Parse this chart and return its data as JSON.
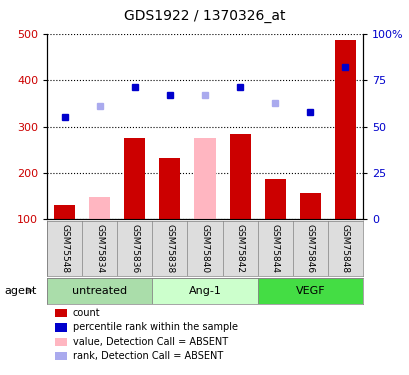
{
  "title": "GDS1922 / 1370326_at",
  "samples": [
    "GSM75548",
    "GSM75834",
    "GSM75836",
    "GSM75838",
    "GSM75840",
    "GSM75842",
    "GSM75844",
    "GSM75846",
    "GSM75848"
  ],
  "bar_values": [
    130,
    null,
    275,
    232,
    null,
    284,
    188,
    157,
    487
  ],
  "bar_absent_values": [
    null,
    148,
    null,
    null,
    275,
    null,
    null,
    null,
    null
  ],
  "dot_present": [
    320,
    null,
    385,
    368,
    null,
    386,
    null,
    332,
    428
  ],
  "dot_absent": [
    null,
    345,
    null,
    null,
    368,
    null,
    350,
    null,
    null
  ],
  "bar_color": "#CC0000",
  "bar_absent_color": "#FFB6C1",
  "dot_present_color": "#0000CC",
  "dot_absent_color": "#AAAAEE",
  "ylim_left": [
    100,
    500
  ],
  "ylim_right": [
    0,
    100
  ],
  "yticks_left": [
    100,
    200,
    300,
    400,
    500
  ],
  "yticks_right": [
    0,
    25,
    50,
    75,
    100
  ],
  "ytick_labels_right": [
    "0",
    "25",
    "50",
    "75",
    "100%"
  ],
  "group_colors": [
    "#AADDAA",
    "#CCFFCC",
    "#44DD44"
  ],
  "group_labels": [
    "untreated",
    "Ang-1",
    "VEGF"
  ],
  "group_ranges": [
    [
      0,
      2
    ],
    [
      3,
      5
    ],
    [
      6,
      8
    ]
  ],
  "legend_items": [
    {
      "label": "count",
      "color": "#CC0000"
    },
    {
      "label": "percentile rank within the sample",
      "color": "#0000CC"
    },
    {
      "label": "value, Detection Call = ABSENT",
      "color": "#FFB6C1"
    },
    {
      "label": "rank, Detection Call = ABSENT",
      "color": "#AAAAEE"
    }
  ],
  "agent_label": "agent",
  "tick_label_color_left": "#CC0000",
  "tick_label_color_right": "#0000CC"
}
